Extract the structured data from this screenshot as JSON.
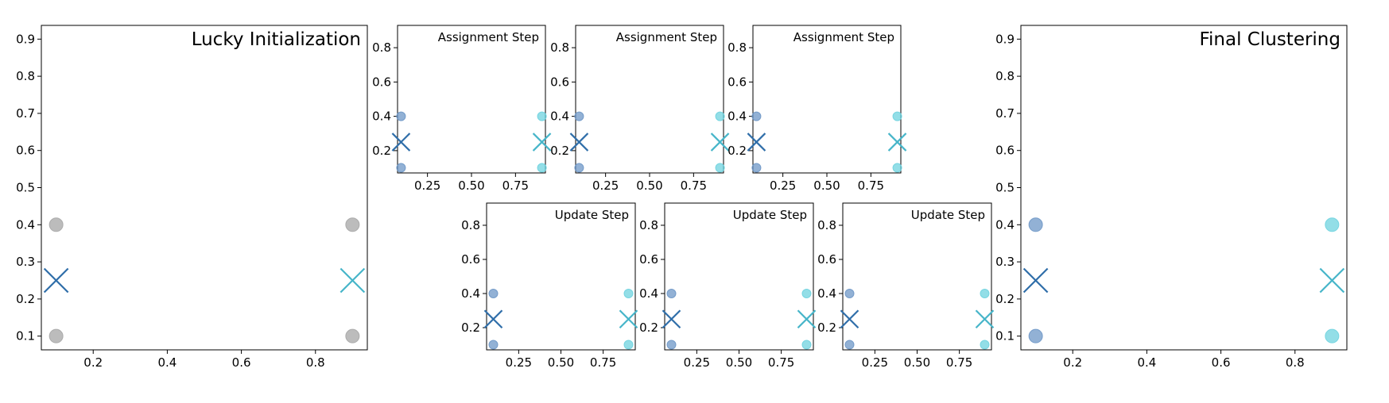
{
  "colors": {
    "initial_point": "#a6a6a6",
    "cluster_1": "#6e97c7",
    "cluster_2": "#6fd3df",
    "centroid_1": "#2f6ea9",
    "centroid_2": "#46b5c9"
  },
  "chart_data": [
    {
      "id": "lucky",
      "type": "scatter",
      "title": "Lucky Initialization",
      "xlabel": "",
      "ylabel": "",
      "xlim": [
        0.06,
        0.94
      ],
      "ylim": [
        0.063,
        0.937
      ],
      "xticks": [
        0.2,
        0.4,
        0.6,
        0.8
      ],
      "yticks": [
        0.1,
        0.2,
        0.3,
        0.4,
        0.5,
        0.6,
        0.7,
        0.8,
        0.9
      ],
      "grid": false,
      "points": [
        {
          "x": 0.1,
          "y": 0.1,
          "cluster": "none"
        },
        {
          "x": 0.1,
          "y": 0.4,
          "cluster": "none"
        },
        {
          "x": 0.9,
          "y": 0.1,
          "cluster": "none"
        },
        {
          "x": 0.9,
          "y": 0.4,
          "cluster": "none"
        }
      ],
      "centroids": [
        {
          "x": 0.1,
          "y": 0.25,
          "cluster": 1
        },
        {
          "x": 0.9,
          "y": 0.25,
          "cluster": 2
        }
      ]
    },
    {
      "id": "assign1",
      "type": "scatter",
      "title": "Assignment Step",
      "xlim": [
        0.08,
        0.92
      ],
      "ylim": [
        0.07,
        0.93
      ],
      "xticks": [
        0.25,
        0.5,
        0.75
      ],
      "yticks": [
        0.2,
        0.4,
        0.6,
        0.8
      ],
      "grid": false,
      "points": [
        {
          "x": 0.1,
          "y": 0.1,
          "cluster": 1
        },
        {
          "x": 0.1,
          "y": 0.4,
          "cluster": 1
        },
        {
          "x": 0.9,
          "y": 0.1,
          "cluster": 2
        },
        {
          "x": 0.9,
          "y": 0.4,
          "cluster": 2
        }
      ],
      "centroids": [
        {
          "x": 0.1,
          "y": 0.25,
          "cluster": 1
        },
        {
          "x": 0.9,
          "y": 0.25,
          "cluster": 2
        }
      ]
    },
    {
      "id": "assign2",
      "type": "scatter",
      "title": "Assignment Step",
      "xlim": [
        0.08,
        0.92
      ],
      "ylim": [
        0.07,
        0.93
      ],
      "xticks": [
        0.25,
        0.5,
        0.75
      ],
      "yticks": [
        0.2,
        0.4,
        0.6,
        0.8
      ],
      "grid": false,
      "points": [
        {
          "x": 0.1,
          "y": 0.1,
          "cluster": 1
        },
        {
          "x": 0.1,
          "y": 0.4,
          "cluster": 1
        },
        {
          "x": 0.9,
          "y": 0.1,
          "cluster": 2
        },
        {
          "x": 0.9,
          "y": 0.4,
          "cluster": 2
        }
      ],
      "centroids": [
        {
          "x": 0.1,
          "y": 0.25,
          "cluster": 1
        },
        {
          "x": 0.9,
          "y": 0.25,
          "cluster": 2
        }
      ]
    },
    {
      "id": "assign3",
      "type": "scatter",
      "title": "Assignment Step",
      "xlim": [
        0.08,
        0.92
      ],
      "ylim": [
        0.07,
        0.93
      ],
      "xticks": [
        0.25,
        0.5,
        0.75
      ],
      "yticks": [
        0.2,
        0.4,
        0.6,
        0.8
      ],
      "grid": false,
      "points": [
        {
          "x": 0.1,
          "y": 0.1,
          "cluster": 1
        },
        {
          "x": 0.1,
          "y": 0.4,
          "cluster": 1
        },
        {
          "x": 0.9,
          "y": 0.1,
          "cluster": 2
        },
        {
          "x": 0.9,
          "y": 0.4,
          "cluster": 2
        }
      ],
      "centroids": [
        {
          "x": 0.1,
          "y": 0.25,
          "cluster": 1
        },
        {
          "x": 0.9,
          "y": 0.25,
          "cluster": 2
        }
      ]
    },
    {
      "id": "update1",
      "type": "scatter",
      "title": "Update Step",
      "xlim": [
        0.06,
        0.94
      ],
      "ylim": [
        0.07,
        0.93
      ],
      "xticks": [
        0.25,
        0.5,
        0.75
      ],
      "yticks": [
        0.2,
        0.4,
        0.6,
        0.8
      ],
      "grid": false,
      "points": [
        {
          "x": 0.1,
          "y": 0.1,
          "cluster": 1
        },
        {
          "x": 0.1,
          "y": 0.4,
          "cluster": 1
        },
        {
          "x": 0.9,
          "y": 0.1,
          "cluster": 2
        },
        {
          "x": 0.9,
          "y": 0.4,
          "cluster": 2
        }
      ],
      "centroids": [
        {
          "x": 0.1,
          "y": 0.25,
          "cluster": 1
        },
        {
          "x": 0.9,
          "y": 0.25,
          "cluster": 2
        }
      ]
    },
    {
      "id": "update2",
      "type": "scatter",
      "title": "Update Step",
      "xlim": [
        0.06,
        0.94
      ],
      "ylim": [
        0.07,
        0.93
      ],
      "xticks": [
        0.25,
        0.5,
        0.75
      ],
      "yticks": [
        0.2,
        0.4,
        0.6,
        0.8
      ],
      "grid": false,
      "points": [
        {
          "x": 0.1,
          "y": 0.1,
          "cluster": 1
        },
        {
          "x": 0.1,
          "y": 0.4,
          "cluster": 1
        },
        {
          "x": 0.9,
          "y": 0.1,
          "cluster": 2
        },
        {
          "x": 0.9,
          "y": 0.4,
          "cluster": 2
        }
      ],
      "centroids": [
        {
          "x": 0.1,
          "y": 0.25,
          "cluster": 1
        },
        {
          "x": 0.9,
          "y": 0.25,
          "cluster": 2
        }
      ]
    },
    {
      "id": "update3",
      "type": "scatter",
      "title": "Update Step",
      "xlim": [
        0.06,
        0.94
      ],
      "ylim": [
        0.07,
        0.93
      ],
      "xticks": [
        0.25,
        0.5,
        0.75
      ],
      "yticks": [
        0.2,
        0.4,
        0.6,
        0.8
      ],
      "grid": false,
      "points": [
        {
          "x": 0.1,
          "y": 0.1,
          "cluster": 1
        },
        {
          "x": 0.1,
          "y": 0.4,
          "cluster": 1
        },
        {
          "x": 0.9,
          "y": 0.1,
          "cluster": 2
        },
        {
          "x": 0.9,
          "y": 0.4,
          "cluster": 2
        }
      ],
      "centroids": [
        {
          "x": 0.1,
          "y": 0.25,
          "cluster": 1
        },
        {
          "x": 0.9,
          "y": 0.25,
          "cluster": 2
        }
      ]
    },
    {
      "id": "final",
      "type": "scatter",
      "title": "Final Clustering",
      "xlabel": "",
      "ylabel": "",
      "xlim": [
        0.06,
        0.94
      ],
      "ylim": [
        0.063,
        0.937
      ],
      "xticks": [
        0.2,
        0.4,
        0.6,
        0.8
      ],
      "yticks": [
        0.1,
        0.2,
        0.3,
        0.4,
        0.5,
        0.6,
        0.7,
        0.8,
        0.9
      ],
      "grid": false,
      "points": [
        {
          "x": 0.1,
          "y": 0.1,
          "cluster": 1
        },
        {
          "x": 0.1,
          "y": 0.4,
          "cluster": 1
        },
        {
          "x": 0.9,
          "y": 0.1,
          "cluster": 2
        },
        {
          "x": 0.9,
          "y": 0.4,
          "cluster": 2
        }
      ],
      "centroids": [
        {
          "x": 0.1,
          "y": 0.25,
          "cluster": 1
        },
        {
          "x": 0.9,
          "y": 0.25,
          "cluster": 2
        }
      ]
    }
  ]
}
